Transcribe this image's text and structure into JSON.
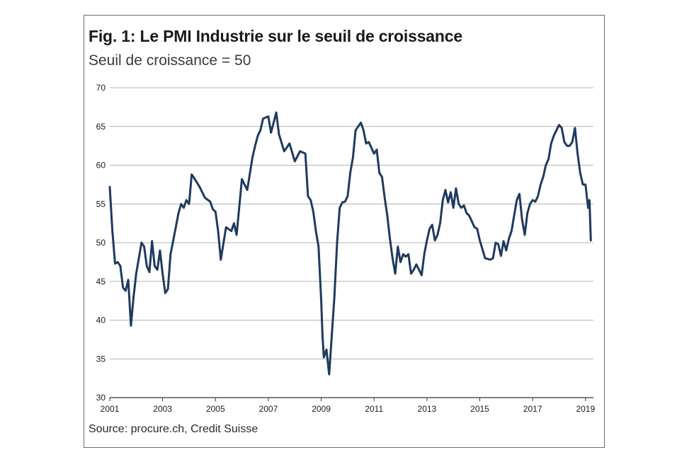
{
  "title": "Fig. 1: Le PMI Industrie sur le seuil de croissance",
  "subtitle": "Seuil de croissance = 50",
  "source": "Source: procure.ch, Credit Suisse",
  "chart_data": {
    "type": "line",
    "title": "Fig. 1: Le PMI Industrie sur le seuil de croissance",
    "subtitle": "Seuil de croissance = 50",
    "xlabel": "",
    "ylabel": "",
    "xlim": [
      2001,
      2019.3
    ],
    "ylim": [
      30,
      70
    ],
    "x_ticks": [
      "2001",
      "2003",
      "2005",
      "2007",
      "2009",
      "2011",
      "2013",
      "2015",
      "2017",
      "2019"
    ],
    "y_ticks": [
      "70",
      "65",
      "60",
      "55",
      "50",
      "45",
      "40",
      "35",
      "30"
    ],
    "grid": true,
    "legend": "none",
    "colors": {
      "line": "#1f3a5f",
      "grid": "#9a9a9a",
      "axis": "#333333"
    },
    "series": [
      {
        "x": [
          2001.0,
          2001.1,
          2001.2,
          2001.3,
          2001.4,
          2001.5,
          2001.6,
          2001.7,
          2001.8,
          2001.9,
          2002.0,
          2002.1,
          2002.2,
          2002.3,
          2002.4,
          2002.5,
          2002.6,
          2002.7,
          2002.8,
          2002.9,
          2003.0,
          2003.1,
          2003.2,
          2003.3,
          2003.5,
          2003.6,
          2003.7,
          2003.8,
          2003.9,
          2004.0,
          2004.1,
          2004.2,
          2004.4,
          2004.6,
          2004.8,
          2004.9,
          2005.0,
          2005.1,
          2005.2,
          2005.4,
          2005.6,
          2005.7,
          2005.8,
          2006.0,
          2006.2,
          2006.4,
          2006.5,
          2006.6,
          2006.7,
          2006.8,
          2007.0,
          2007.1,
          2007.3,
          2007.4,
          2007.6,
          2007.8,
          2008.0,
          2008.2,
          2008.4,
          2008.5,
          2008.6,
          2008.7,
          2008.8,
          2008.9,
          2009.0,
          2009.05,
          2009.1,
          2009.2,
          2009.3,
          2009.4,
          2009.5,
          2009.6,
          2009.7,
          2009.8,
          2009.9,
          2010.0,
          2010.1,
          2010.2,
          2010.3,
          2010.4,
          2010.5,
          2010.6,
          2010.7,
          2010.8,
          2011.0,
          2011.1,
          2011.2,
          2011.3,
          2011.4,
          2011.5,
          2011.6,
          2011.7,
          2011.8,
          2011.9,
          2012.0,
          2012.1,
          2012.2,
          2012.3,
          2012.4,
          2012.5,
          2012.6,
          2012.7,
          2012.8,
          2012.9,
          2013.0,
          2013.1,
          2013.2,
          2013.3,
          2013.4,
          2013.5,
          2013.6,
          2013.7,
          2013.8,
          2013.9,
          2014.0,
          2014.1,
          2014.2,
          2014.3,
          2014.4,
          2014.5,
          2014.6,
          2014.8,
          2014.9,
          2015.0,
          2015.2,
          2015.4,
          2015.5,
          2015.6,
          2015.7,
          2015.8,
          2015.9,
          2016.0,
          2016.1,
          2016.2,
          2016.4,
          2016.5,
          2016.6,
          2016.7,
          2016.8,
          2016.9,
          2017.0,
          2017.1,
          2017.2,
          2017.3,
          2017.4,
          2017.5,
          2017.6,
          2017.7,
          2017.8,
          2017.9,
          2018.0,
          2018.1,
          2018.2,
          2018.3,
          2018.4,
          2018.5,
          2018.6,
          2018.7,
          2018.8,
          2018.9,
          2019.0,
          2019.1,
          2019.15,
          2019.2
        ],
        "values": [
          57.2,
          51.5,
          47.3,
          47.5,
          47.0,
          44.2,
          43.8,
          45.2,
          39.3,
          43.0,
          46.0,
          48.0,
          50.0,
          49.5,
          47.0,
          46.2,
          50.2,
          47.0,
          46.5,
          49.0,
          46.0,
          43.5,
          44.0,
          48.5,
          52.0,
          53.8,
          55.0,
          54.5,
          55.5,
          55.0,
          58.8,
          58.3,
          57.2,
          55.8,
          55.3,
          54.3,
          54.0,
          51.5,
          47.8,
          52.0,
          51.5,
          52.5,
          51.0,
          58.2,
          56.8,
          61.0,
          62.5,
          63.8,
          64.5,
          66.0,
          66.3,
          64.2,
          66.8,
          64.0,
          61.8,
          62.8,
          60.5,
          61.8,
          61.5,
          56.0,
          55.5,
          54.0,
          51.5,
          49.5,
          42.5,
          38.0,
          35.2,
          36.2,
          33.0,
          38.0,
          43.0,
          50.0,
          54.5,
          55.2,
          55.3,
          56.0,
          59.0,
          61.0,
          64.5,
          65.0,
          65.5,
          64.5,
          62.8,
          63.0,
          61.5,
          62.0,
          59.0,
          58.5,
          55.8,
          53.5,
          50.5,
          48.0,
          46.0,
          49.5,
          47.5,
          48.5,
          48.2,
          48.5,
          46.0,
          46.5,
          47.2,
          46.5,
          45.8,
          48.5,
          50.3,
          51.8,
          52.3,
          50.3,
          51.0,
          52.5,
          55.5,
          56.8,
          55.2,
          56.5,
          54.5,
          57.0,
          55.0,
          54.5,
          54.8,
          53.8,
          53.5,
          52.0,
          51.8,
          50.3,
          48.0,
          47.8,
          48.0,
          50.0,
          49.8,
          48.3,
          50.2,
          49.0,
          50.5,
          51.5,
          55.5,
          56.3,
          53.0,
          51.0,
          53.8,
          55.0,
          55.5,
          55.3,
          56.0,
          57.5,
          58.5,
          60.0,
          60.8,
          62.8,
          63.8,
          64.5,
          65.2,
          64.8,
          63.0,
          62.5,
          62.5,
          63.0,
          64.8,
          61.5,
          59.0,
          57.5,
          57.5,
          54.5,
          55.5,
          50.3
        ]
      }
    ]
  }
}
